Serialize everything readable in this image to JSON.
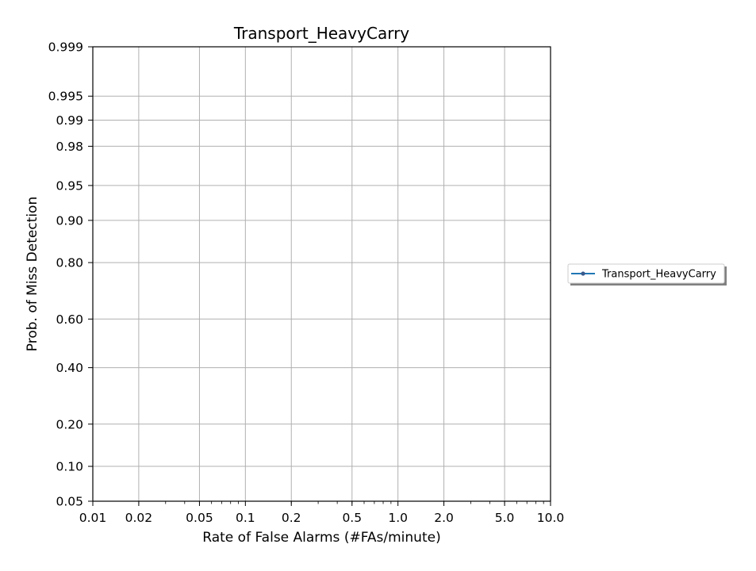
{
  "chart_data": {
    "type": "line",
    "title": "Transport_HeavyCarry",
    "xlabel": "Rate of False Alarms (#FAs/minute)",
    "ylabel": "Prob. of Miss Detection",
    "x_scale": "log",
    "y_scale": "normal-deviate",
    "xlim": [
      0.01,
      10.0
    ],
    "ylim": [
      0.05,
      0.999
    ],
    "x_ticks_major": [
      0.01,
      0.02,
      0.05,
      0.1,
      0.2,
      0.5,
      1.0,
      2.0,
      5.0,
      10.0
    ],
    "x_tick_labels": [
      "0.01",
      "0.02",
      "0.05",
      "0.1",
      "0.2",
      "0.5",
      "1.0",
      "2.0",
      "5.0",
      "10.0"
    ],
    "y_ticks": [
      0.05,
      0.1,
      0.2,
      0.4,
      0.6,
      0.8,
      0.9,
      0.95,
      0.98,
      0.99,
      0.995,
      0.999
    ],
    "y_tick_labels": [
      "0.05",
      "0.10",
      "0.20",
      "0.40",
      "0.60",
      "0.80",
      "0.90",
      "0.95",
      "0.98",
      "0.99",
      "0.995",
      "0.999"
    ],
    "grid": true,
    "legend_position": "right, outside plot",
    "series": [
      {
        "name": "Transport_HeavyCarry",
        "color": "#1f77b4",
        "x": [],
        "y": []
      }
    ]
  }
}
